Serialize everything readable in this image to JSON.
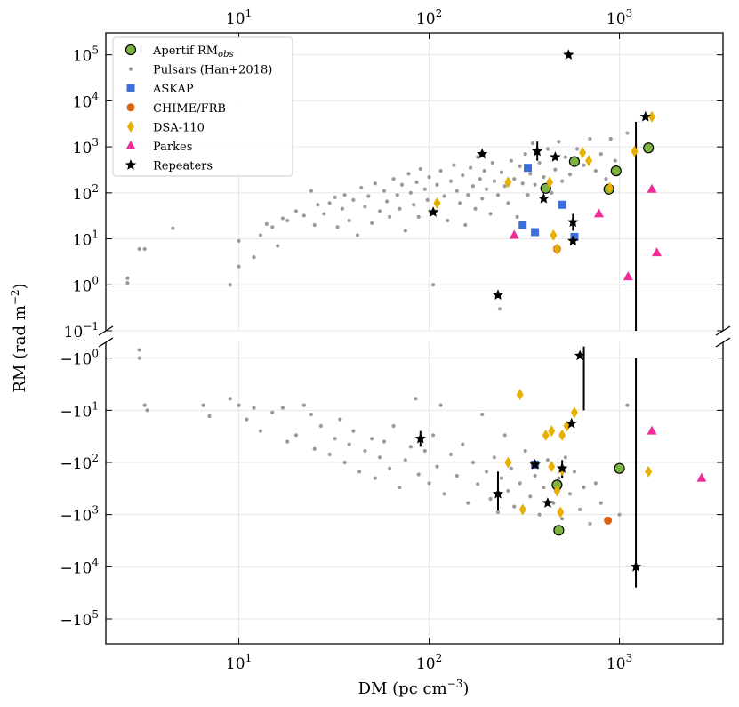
{
  "chart_data": {
    "type": "scatter",
    "xscale": "log",
    "xlim": [
      2,
      3500
    ],
    "xlabel_text": "DM (pc cm",
    "xlabel_sup": "−3",
    "xlabel_close": ")",
    "ylabel_text": "RM (rad m",
    "ylabel_sup": "−2",
    "ylabel_close": ")",
    "top_panel": {
      "yscale": "log",
      "ylim": [
        0.1,
        300000
      ]
    },
    "bottom_panel": {
      "yscale": "negative-log",
      "ylim": [
        -0.5,
        -300000
      ]
    },
    "x_ticks": [
      {
        "value": 10,
        "base": "10",
        "exp": "1"
      },
      {
        "value": 100,
        "base": "10",
        "exp": "2"
      },
      {
        "value": 1000,
        "base": "10",
        "exp": "3"
      }
    ],
    "top_y_ticks": [
      {
        "value": 100000,
        "base": "10",
        "exp": "5"
      },
      {
        "value": 10000,
        "base": "10",
        "exp": "4"
      },
      {
        "value": 1000,
        "base": "10",
        "exp": "3"
      },
      {
        "value": 100,
        "base": "10",
        "exp": "2"
      },
      {
        "value": 10,
        "base": "10",
        "exp": "1"
      },
      {
        "value": 1,
        "base": "10",
        "exp": "0"
      },
      {
        "value": 0.1,
        "base": "10",
        "exp": "−1"
      }
    ],
    "bottom_y_ticks": [
      {
        "value": -1,
        "base": "−10",
        "exp": "0"
      },
      {
        "value": -10,
        "base": "−10",
        "exp": "1"
      },
      {
        "value": -100,
        "base": "−10",
        "exp": "2"
      },
      {
        "value": -1000,
        "base": "−10",
        "exp": "3"
      },
      {
        "value": -10000,
        "base": "−10",
        "exp": "4"
      },
      {
        "value": -100000,
        "base": "−10",
        "exp": "5"
      }
    ],
    "legend_position": "top-left",
    "legend": [
      {
        "label": "Apertif RM",
        "sub": "obs",
        "marker": "circle",
        "color": "#7cb342"
      },
      {
        "label": "Pulsars (Han+2018)",
        "marker": "dot",
        "color": "#999999"
      },
      {
        "label": "ASKAP",
        "marker": "square",
        "color": "#3b6fd9"
      },
      {
        "label": "CHIME/FRB",
        "marker": "circle-small",
        "color": "#d4620f"
      },
      {
        "label": "DSA-110",
        "marker": "diamond",
        "color": "#e6b000"
      },
      {
        "label": "Parkes",
        "marker": "triangle",
        "color": "#f02b9a"
      },
      {
        "label": "Repeaters",
        "marker": "star",
        "color": "#000000"
      }
    ],
    "series": [
      {
        "name": "Apertif RMobs",
        "points": [
          [
            580,
            480
          ],
          [
            960,
            300
          ],
          [
            1420,
            950
          ],
          [
            410,
            125
          ],
          [
            880,
            120
          ],
          [
            470,
            -270
          ],
          [
            480,
            -2000
          ],
          [
            1000,
            -130
          ]
        ]
      },
      {
        "name": "ASKAP",
        "points": [
          [
            330,
            350
          ],
          [
            310,
            20
          ],
          [
            360,
            14
          ],
          [
            500,
            55
          ],
          [
            580,
            11
          ],
          [
            360,
            -110
          ]
        ]
      },
      {
        "name": "CHIME/FRB",
        "points": [
          [
            470,
            6
          ],
          [
            870,
            -1300
          ]
        ]
      },
      {
        "name": "DSA-110",
        "points": [
          [
            1480,
            4500
          ],
          [
            1200,
            800
          ],
          [
            640,
            750
          ],
          [
            690,
            500
          ],
          [
            890,
            130
          ],
          [
            430,
            170
          ],
          [
            260,
            170
          ],
          [
            110,
            60
          ],
          [
            450,
            12
          ],
          [
            470,
            6
          ],
          [
            300,
            -5
          ],
          [
            580,
            -11
          ],
          [
            530,
            -20
          ],
          [
            410,
            -30
          ],
          [
            440,
            -25
          ],
          [
            500,
            -30
          ],
          [
            260,
            -100
          ],
          [
            440,
            -120
          ],
          [
            500,
            -140
          ],
          [
            470,
            -350
          ],
          [
            310,
            -800
          ],
          [
            490,
            -900
          ],
          [
            1420,
            -150
          ]
        ]
      },
      {
        "name": "Parkes",
        "points": [
          [
            1480,
            120
          ],
          [
            780,
            35
          ],
          [
            280,
            12
          ],
          [
            1570,
            5
          ],
          [
            1110,
            1.5
          ],
          [
            1480,
            -25
          ],
          [
            2700,
            -200
          ]
        ]
      },
      {
        "name": "Repeaters",
        "points": [
          [
            540,
            100000
          ],
          [
            1370,
            4500
          ],
          [
            190,
            700
          ],
          [
            370,
            800
          ],
          [
            460,
            600
          ],
          [
            400,
            75
          ],
          [
            105,
            38
          ],
          [
            570,
            23
          ],
          [
            570,
            9
          ],
          [
            230,
            0.6
          ],
          [
            620,
            -0.9
          ],
          [
            560,
            -18
          ],
          [
            90,
            -35
          ],
          [
            500,
            -130
          ],
          [
            360,
            -110
          ],
          [
            230,
            -400
          ],
          [
            420,
            -600
          ],
          [
            1220,
            -10000
          ]
        ]
      },
      {
        "name": "Pulsars",
        "points": [
          [
            2.6,
            1.4
          ],
          [
            2.6,
            1.1
          ],
          [
            3.0,
            6
          ],
          [
            3.2,
            6
          ],
          [
            4.5,
            17
          ],
          [
            9,
            1
          ],
          [
            10,
            2.5
          ],
          [
            10,
            9
          ],
          [
            12,
            4
          ],
          [
            13,
            12
          ],
          [
            14,
            21
          ],
          [
            15,
            18
          ],
          [
            16,
            7
          ],
          [
            17,
            28
          ],
          [
            18,
            25
          ],
          [
            20,
            40
          ],
          [
            22,
            32
          ],
          [
            24,
            110
          ],
          [
            25,
            20
          ],
          [
            26,
            55
          ],
          [
            28,
            35
          ],
          [
            30,
            60
          ],
          [
            32,
            80
          ],
          [
            33,
            18
          ],
          [
            35,
            45
          ],
          [
            36,
            90
          ],
          [
            38,
            25
          ],
          [
            40,
            70
          ],
          [
            42,
            12
          ],
          [
            44,
            130
          ],
          [
            46,
            50
          ],
          [
            48,
            85
          ],
          [
            50,
            22
          ],
          [
            52,
            160
          ],
          [
            55,
            40
          ],
          [
            58,
            110
          ],
          [
            60,
            65
          ],
          [
            62,
            30
          ],
          [
            65,
            200
          ],
          [
            68,
            90
          ],
          [
            70,
            45
          ],
          [
            72,
            150
          ],
          [
            75,
            15
          ],
          [
            78,
            260
          ],
          [
            80,
            100
          ],
          [
            83,
            55
          ],
          [
            86,
            170
          ],
          [
            88,
            30
          ],
          [
            90,
            330
          ],
          [
            95,
            120
          ],
          [
            98,
            70
          ],
          [
            100,
            220
          ],
          [
            105,
            1
          ],
          [
            108,
            40
          ],
          [
            110,
            150
          ],
          [
            115,
            300
          ],
          [
            120,
            85
          ],
          [
            125,
            25
          ],
          [
            130,
            180
          ],
          [
            135,
            400
          ],
          [
            140,
            110
          ],
          [
            145,
            60
          ],
          [
            150,
            240
          ],
          [
            155,
            20
          ],
          [
            160,
            90
          ],
          [
            165,
            350
          ],
          [
            170,
            140
          ],
          [
            175,
            45
          ],
          [
            180,
            600
          ],
          [
            185,
            200
          ],
          [
            190,
            75
          ],
          [
            195,
            300
          ],
          [
            200,
            120
          ],
          [
            210,
            35
          ],
          [
            215,
            450
          ],
          [
            220,
            180
          ],
          [
            230,
            90
          ],
          [
            235,
            0.3
          ],
          [
            240,
            280
          ],
          [
            250,
            140
          ],
          [
            260,
            60
          ],
          [
            270,
            500
          ],
          [
            280,
            200
          ],
          [
            290,
            30
          ],
          [
            300,
            380
          ],
          [
            310,
            160
          ],
          [
            320,
            700
          ],
          [
            330,
            90
          ],
          [
            340,
            260
          ],
          [
            350,
            1200
          ],
          [
            360,
            150
          ],
          [
            380,
            450
          ],
          [
            400,
            220
          ],
          [
            420,
            900
          ],
          [
            440,
            100
          ],
          [
            460,
            320
          ],
          [
            480,
            1300
          ],
          [
            500,
            180
          ],
          [
            520,
            600
          ],
          [
            550,
            250
          ],
          [
            600,
            900
          ],
          [
            650,
            400
          ],
          [
            700,
            1500
          ],
          [
            750,
            300
          ],
          [
            800,
            700
          ],
          [
            850,
            200
          ],
          [
            900,
            1500
          ],
          [
            950,
            500
          ],
          [
            1100,
            2000
          ],
          [
            3,
            -1
          ],
          [
            3,
            -0.7
          ],
          [
            3.2,
            -8
          ],
          [
            3.3,
            -10
          ],
          [
            6.5,
            -8
          ],
          [
            7,
            -13
          ],
          [
            9,
            -6
          ],
          [
            10,
            -8
          ],
          [
            11,
            -15
          ],
          [
            12,
            -9
          ],
          [
            13,
            -25
          ],
          [
            15,
            -11
          ],
          [
            17,
            -9
          ],
          [
            18,
            -40
          ],
          [
            20,
            -30
          ],
          [
            22,
            -8
          ],
          [
            24,
            -12
          ],
          [
            25,
            -55
          ],
          [
            27,
            -20
          ],
          [
            30,
            -70
          ],
          [
            32,
            -35
          ],
          [
            34,
            -15
          ],
          [
            36,
            -100
          ],
          [
            38,
            -45
          ],
          [
            40,
            -25
          ],
          [
            43,
            -150
          ],
          [
            46,
            -60
          ],
          [
            50,
            -35
          ],
          [
            52,
            -200
          ],
          [
            55,
            -80
          ],
          [
            58,
            -40
          ],
          [
            62,
            -130
          ],
          [
            65,
            -20
          ],
          [
            70,
            -300
          ],
          [
            75,
            -90
          ],
          [
            80,
            -50
          ],
          [
            85,
            -6
          ],
          [
            88,
            -170
          ],
          [
            95,
            -60
          ],
          [
            100,
            -250
          ],
          [
            105,
            -30
          ],
          [
            110,
            -120
          ],
          [
            115,
            -8
          ],
          [
            120,
            -400
          ],
          [
            130,
            -70
          ],
          [
            140,
            -180
          ],
          [
            150,
            -45
          ],
          [
            160,
            -600
          ],
          [
            170,
            -100
          ],
          [
            180,
            -260
          ],
          [
            190,
            -12
          ],
          [
            200,
            -150
          ],
          [
            210,
            -500
          ],
          [
            220,
            -80
          ],
          [
            230,
            -900
          ],
          [
            240,
            -200
          ],
          [
            250,
            -30
          ],
          [
            260,
            -350
          ],
          [
            270,
            -130
          ],
          [
            280,
            -700
          ],
          [
            300,
            -250
          ],
          [
            320,
            -60
          ],
          [
            340,
            -450
          ],
          [
            360,
            -180
          ],
          [
            380,
            -1000
          ],
          [
            400,
            -300
          ],
          [
            420,
            -90
          ],
          [
            450,
            -600
          ],
          [
            480,
            -200
          ],
          [
            500,
            -1200
          ],
          [
            520,
            -80
          ],
          [
            550,
            -400
          ],
          [
            580,
            -150
          ],
          [
            620,
            -800
          ],
          [
            650,
            -300
          ],
          [
            700,
            -1500
          ],
          [
            750,
            -250
          ],
          [
            800,
            -600
          ],
          [
            1100,
            -8
          ],
          [
            1000,
            -1000
          ]
        ]
      }
    ],
    "error_bars": [
      {
        "x": 370,
        "y": 800,
        "y_low": 500,
        "y_high": 1300
      },
      {
        "x": 570,
        "y": 23,
        "y_low": 15,
        "y_high": 35
      },
      {
        "x": 500,
        "y": -130,
        "y_low": -90,
        "y_high": -200
      },
      {
        "x": 230,
        "y": -400,
        "y_low": -150,
        "y_high": -900
      },
      {
        "x": 90,
        "y": -35,
        "y_low": -25,
        "y_high": -50
      },
      {
        "x": 650,
        "y": -0.9,
        "y_low": -0.6,
        "y_high": -10
      },
      {
        "x": 650,
        "y": 1,
        "y_low": 1,
        "y_high": 1
      },
      {
        "x": 1220,
        "y": -10000,
        "y_low": -1,
        "y_high": -25000
      },
      {
        "x": 1220,
        "y": 3500,
        "y_low": 0.1,
        "y_high": 3500
      }
    ]
  }
}
